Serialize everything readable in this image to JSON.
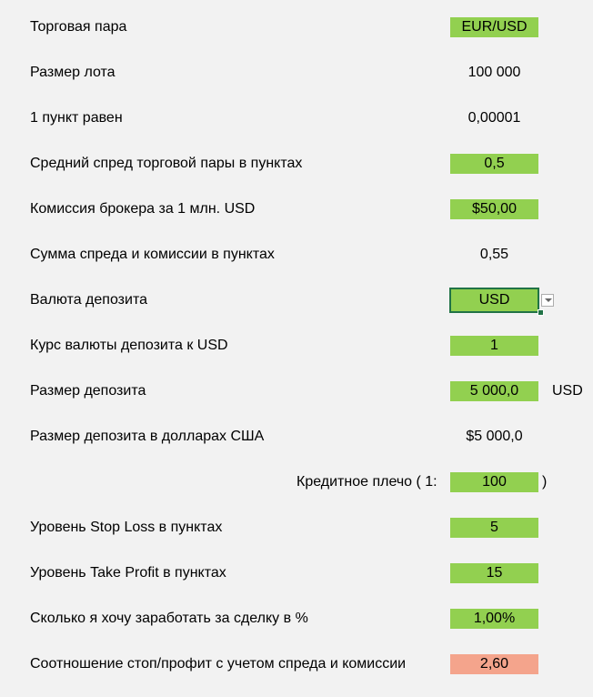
{
  "rows": [
    {
      "label": "Торговая пара",
      "value": "EUR/USD"
    },
    {
      "label": "Размер лота",
      "value": "100 000"
    },
    {
      "label": "1 пункт равен",
      "value": "0,00001"
    },
    {
      "label": "Средний спред торговой пары в пунктах",
      "value": "0,5"
    },
    {
      "label": "Комиссия брокера за 1 млн. USD",
      "value": "$50,00"
    },
    {
      "label": "Сумма спреда и комиссии в пунктах",
      "value": "0,55"
    },
    {
      "label": "Валюта депозита",
      "value": "USD"
    },
    {
      "label": "Курс валюты депозита к USD",
      "value": "1"
    },
    {
      "label": "Размер депозита",
      "value": "5 000,0",
      "suffix": "USD"
    },
    {
      "label": "Размер депозита в долларах США",
      "value": "$5 000,0"
    },
    {
      "label": "Кредитное плечо ( 1:",
      "value": "100",
      "suffix": ")"
    },
    {
      "label": "Уровень Stop Loss в пунктах",
      "value": "5"
    },
    {
      "label": "Уровень Take Profit в пунктах",
      "value": "15"
    },
    {
      "label": "Сколько я хочу заработать за сделку в %",
      "value": "1,00%"
    },
    {
      "label": "Соотношение стоп/профит с учетом спреда и комиссии",
      "value": "2,60"
    }
  ],
  "colors": {
    "input_fill": "#92d050",
    "result_fill": "#f4a48c",
    "selection": "#217346"
  },
  "icons": {
    "dropdown": "chevron-down-icon"
  }
}
